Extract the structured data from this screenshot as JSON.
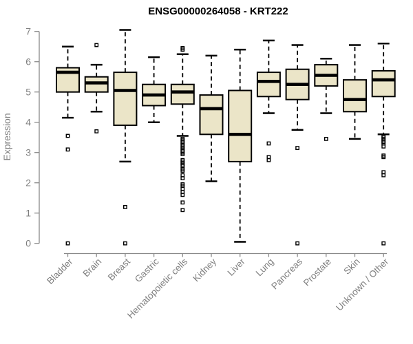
{
  "chart_data": {
    "type": "boxplot",
    "title": "ENSG00000264058 - KRT222",
    "xlabel": "",
    "ylabel": "Expression",
    "ylim": [
      0,
      7
    ],
    "yticks": [
      0,
      1,
      2,
      3,
      4,
      5,
      6,
      7
    ],
    "grid": false,
    "legend": false,
    "colors": {
      "box_fill": "#ebe5c8",
      "box_stroke": "#000000",
      "median": "#000000",
      "axis_gray": "#8a8a8a",
      "text_gray": "#7f7f7f",
      "title": "#000000",
      "background": "#ffffff"
    },
    "categories": [
      "Bladder",
      "Brain",
      "Breast",
      "Gastric",
      "Hematopoietic cells",
      "Kidney",
      "Liver",
      "Lung",
      "Pancreas",
      "Prostate",
      "Skin",
      "Unknown / Other"
    ],
    "series": [
      {
        "category": "Bladder",
        "whisker_low": 4.15,
        "q1": 5.0,
        "median": 5.65,
        "q3": 5.8,
        "whisker_high": 6.5,
        "outliers": [
          3.55,
          3.1,
          0
        ]
      },
      {
        "category": "Brain",
        "whisker_low": 4.35,
        "q1": 5.0,
        "median": 5.3,
        "q3": 5.5,
        "whisker_high": 5.9,
        "outliers": [
          6.55,
          3.7
        ]
      },
      {
        "category": "Breast",
        "whisker_low": 2.7,
        "q1": 3.9,
        "median": 5.05,
        "q3": 5.65,
        "whisker_high": 7.05,
        "outliers": [
          1.2,
          0
        ]
      },
      {
        "category": "Gastric",
        "whisker_low": 4.0,
        "q1": 4.55,
        "median": 4.9,
        "q3": 5.25,
        "whisker_high": 6.15,
        "outliers": []
      },
      {
        "category": "Hematopoietic cells",
        "whisker_low": 3.55,
        "q1": 4.6,
        "median": 5.0,
        "q3": 5.25,
        "whisker_high": 6.25,
        "outliers": [
          6.45,
          6.4,
          3.45,
          3.4,
          3.35,
          3.3,
          3.25,
          3.2,
          3.15,
          3.1,
          3.05,
          3.0,
          2.95,
          2.75,
          2.7,
          2.65,
          2.6,
          2.55,
          2.45,
          2.4,
          2.25,
          2.15,
          1.95,
          1.9,
          1.8,
          1.7,
          1.6,
          1.35,
          1.1
        ]
      },
      {
        "category": "Kidney",
        "whisker_low": 2.05,
        "q1": 3.6,
        "median": 4.45,
        "q3": 4.9,
        "whisker_high": 6.2,
        "outliers": []
      },
      {
        "category": "Liver",
        "whisker_low": 0.05,
        "q1": 2.7,
        "median": 3.6,
        "q3": 5.05,
        "whisker_high": 6.4,
        "outliers": []
      },
      {
        "category": "Lung",
        "whisker_low": 4.3,
        "q1": 4.85,
        "median": 5.35,
        "q3": 5.65,
        "whisker_high": 6.7,
        "outliers": [
          3.3,
          2.85,
          2.75
        ]
      },
      {
        "category": "Pancreas",
        "whisker_low": 3.75,
        "q1": 4.75,
        "median": 5.25,
        "q3": 5.75,
        "whisker_high": 6.55,
        "outliers": [
          3.15,
          0
        ]
      },
      {
        "category": "Prostate",
        "whisker_low": 4.3,
        "q1": 5.2,
        "median": 5.55,
        "q3": 5.9,
        "whisker_high": 6.1,
        "outliers": [
          3.45
        ]
      },
      {
        "category": "Skin",
        "whisker_low": 3.45,
        "q1": 4.35,
        "median": 4.75,
        "q3": 5.4,
        "whisker_high": 6.55,
        "outliers": []
      },
      {
        "category": "Unknown / Other",
        "whisker_low": 3.6,
        "q1": 4.85,
        "median": 5.4,
        "q3": 5.7,
        "whisker_high": 6.6,
        "outliers": [
          3.55,
          3.5,
          3.45,
          3.4,
          3.35,
          3.3,
          3.2,
          2.9,
          2.85,
          2.35,
          2.25,
          0
        ]
      }
    ]
  }
}
